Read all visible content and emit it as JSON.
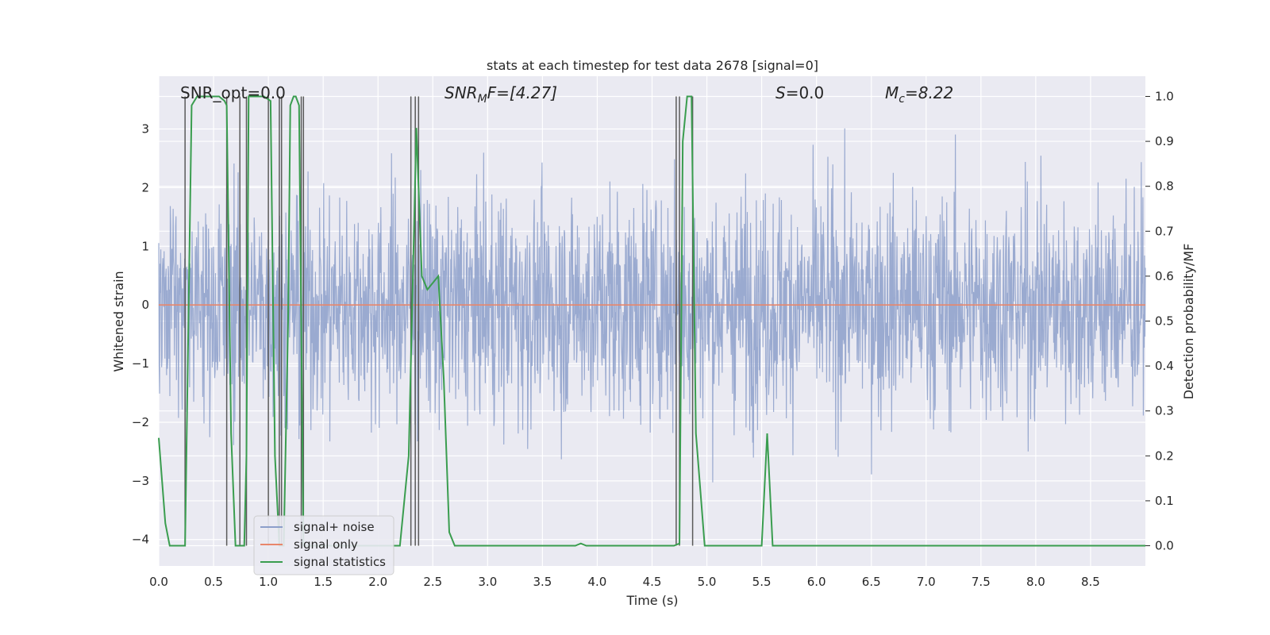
{
  "chart_data": {
    "type": "line",
    "title": "stats at each timestep for test data 2678 [signal=0]",
    "xlabel": "Time (s)",
    "ylabel": "Whitened strain",
    "y2label": "Detection probability/MF",
    "xlim": [
      0,
      9.0
    ],
    "ylim": [
      -4.45,
      3.9
    ],
    "y2lim": [
      -0.045,
      1.045
    ],
    "x_ticks": [
      "0.0",
      "0.5",
      "1.0",
      "1.5",
      "2.0",
      "2.5",
      "3.0",
      "3.5",
      "4.0",
      "4.5",
      "5.0",
      "5.5",
      "6.0",
      "6.5",
      "7.0",
      "7.5",
      "8.0",
      "8.5"
    ],
    "y_ticks": [
      "3",
      "2",
      "1",
      "0",
      "−1",
      "−2",
      "−3",
      "−4"
    ],
    "y2_ticks": [
      "1.0",
      "0.9",
      "0.8",
      "0.7",
      "0.6",
      "0.5",
      "0.4",
      "0.3",
      "0.2",
      "0.1",
      "0.0"
    ],
    "grid": true,
    "legend_placement": "lower-left",
    "annotations": [
      {
        "pre": "SNR_opt=0.0",
        "sub": "",
        "post": "",
        "italic": false
      },
      {
        "pre": "SNR",
        "sub": "M",
        "post": "F=[4.27]",
        "italic": true
      },
      {
        "pre": "S",
        "sub": "",
        "post": "=0.0",
        "italic": true
      },
      {
        "pre": "M",
        "sub": "c",
        "post": "=8.22",
        "italic": true
      }
    ],
    "series": [
      {
        "name": "signal+ noise",
        "color": "#8c9fca",
        "axis": "left",
        "description_values": "noise band roughly between -1.8 and 1.8 with spikes up to about 3.5 and down to about -3.9"
      },
      {
        "name": "signal only",
        "color": "#e8866b",
        "axis": "left",
        "x": [
          0,
          9.0
        ],
        "y": [
          0,
          0
        ]
      },
      {
        "name": "signal statistics",
        "color": "#3a9d4f",
        "axis": "right",
        "x": [
          0.0,
          0.06,
          0.1,
          0.24,
          0.3,
          0.35,
          0.55,
          0.6,
          0.62,
          0.66,
          0.7,
          0.74,
          0.78,
          0.8,
          0.82,
          0.86,
          0.96,
          1.02,
          1.06,
          1.1,
          1.14,
          1.18,
          1.2,
          1.23,
          1.25,
          1.28,
          1.32,
          1.36,
          1.4,
          2.2,
          2.28,
          2.35,
          2.4,
          2.45,
          2.55,
          2.6,
          2.65,
          2.7,
          2.9,
          3.0,
          3.1,
          3.8,
          3.85,
          3.9,
          4.7,
          4.75,
          4.78,
          4.82,
          4.86,
          4.9,
          4.98,
          5.0,
          5.45,
          5.5,
          5.55,
          5.6,
          8.8,
          9.0
        ],
        "y": [
          0.24,
          0.05,
          0.0,
          0.0,
          0.98,
          1.0,
          1.0,
          0.99,
          0.98,
          0.25,
          0.0,
          0.0,
          0.0,
          0.2,
          1.0,
          1.0,
          1.0,
          0.99,
          0.2,
          0.0,
          0.0,
          0.5,
          0.98,
          1.0,
          1.0,
          0.98,
          0.0,
          0.0,
          0.0,
          0.0,
          0.2,
          0.93,
          0.6,
          0.57,
          0.6,
          0.37,
          0.03,
          0.0,
          0.0,
          0.0,
          0.0,
          0.0,
          0.005,
          0.0,
          0.0,
          0.005,
          0.9,
          1.0,
          1.0,
          0.25,
          0.0,
          0.0,
          0.0,
          0.0,
          0.25,
          0.0,
          0.0,
          0.0
        ]
      }
    ],
    "vertical_markers_s": [
      0.24,
      0.62,
      0.74,
      0.8,
      1.0,
      1.1,
      1.12,
      1.3,
      1.32,
      2.3,
      2.34,
      2.37,
      4.72,
      4.75,
      4.87
    ]
  }
}
